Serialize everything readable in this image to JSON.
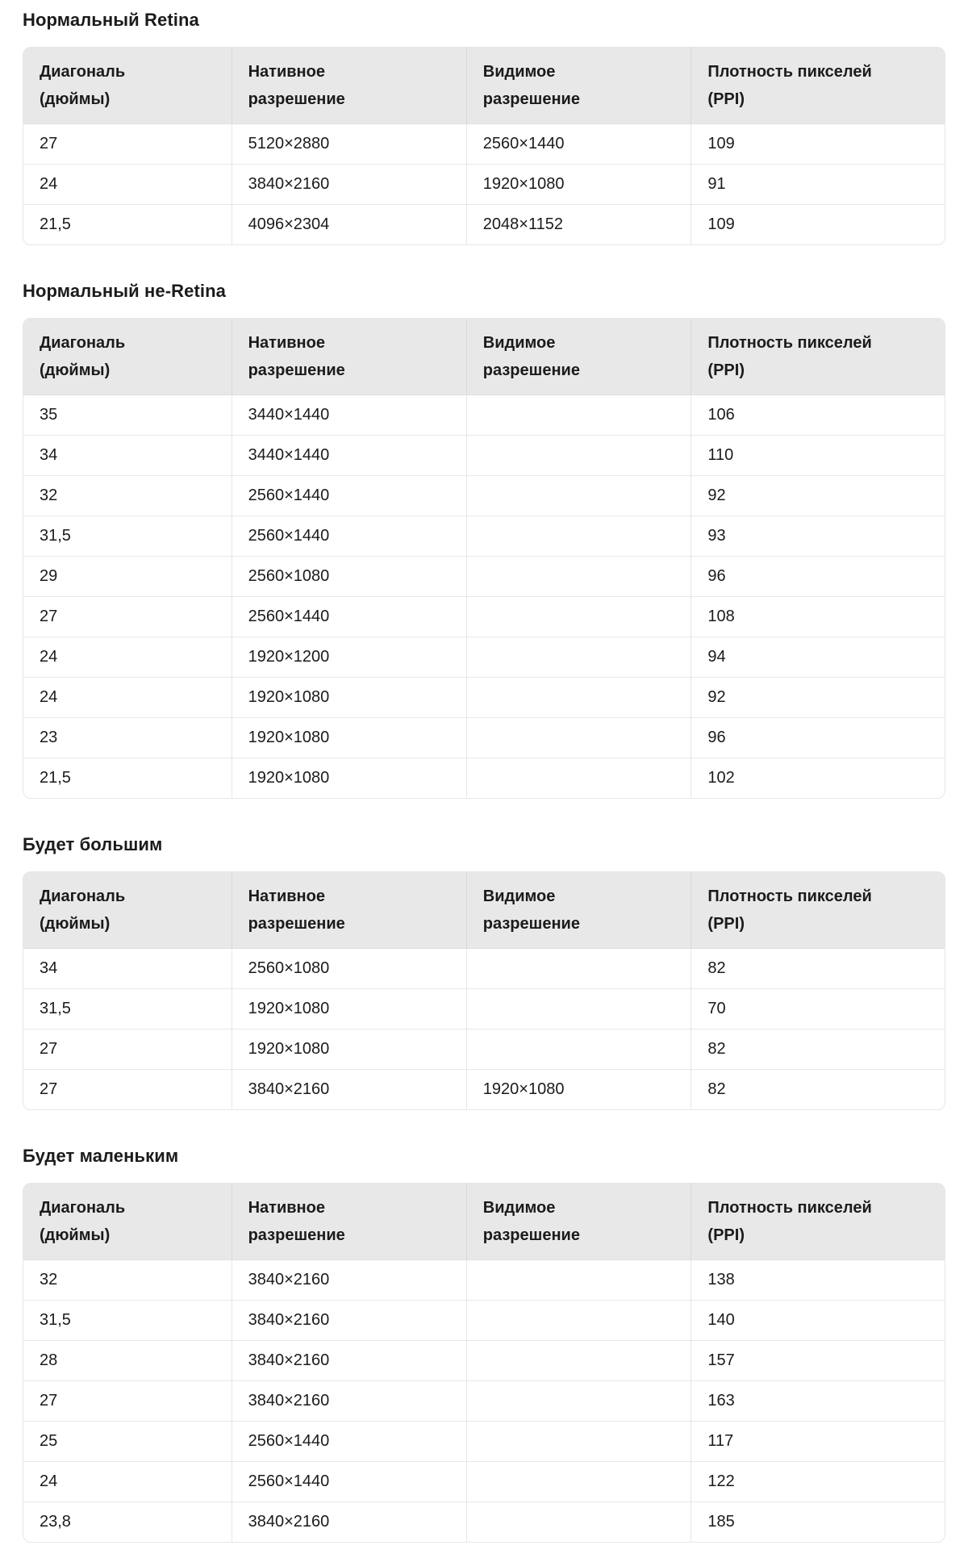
{
  "colors": {
    "header_background": "#e8e8e8",
    "text": "#1b1b1b",
    "border": "#e6e6e6",
    "page_background": "#ffffff"
  },
  "sections": [
    {
      "title": "Нормальный Retina",
      "table": {
        "headers": [
          [
            "Диагональ",
            "(дюймы)"
          ],
          [
            "Нативное",
            "разрешение"
          ],
          [
            "Видимое",
            "разрешение"
          ],
          [
            "Плотность пикселей",
            "(PPI)"
          ]
        ],
        "rows": [
          [
            "27",
            "5120×2880",
            "2560×1440",
            "109"
          ],
          [
            "24",
            "3840×2160",
            "1920×1080",
            "91"
          ],
          [
            "21,5",
            "4096×2304",
            "2048×1152",
            "109"
          ]
        ]
      }
    },
    {
      "title": "Нормальный не-Retina",
      "table": {
        "headers": [
          [
            "Диагональ",
            "(дюймы)"
          ],
          [
            "Нативное",
            "разрешение"
          ],
          [
            "Видимое",
            "разрешение"
          ],
          [
            "Плотность пикселей",
            "(PPI)"
          ]
        ],
        "rows": [
          [
            "35",
            "3440×1440",
            "",
            "106"
          ],
          [
            "34",
            "3440×1440",
            "",
            "110"
          ],
          [
            "32",
            "2560×1440",
            "",
            "92"
          ],
          [
            "31,5",
            "2560×1440",
            "",
            "93"
          ],
          [
            "29",
            "2560×1080",
            "",
            "96"
          ],
          [
            "27",
            "2560×1440",
            "",
            "108"
          ],
          [
            "24",
            "1920×1200",
            "",
            "94"
          ],
          [
            "24",
            "1920×1080",
            "",
            "92"
          ],
          [
            "23",
            "1920×1080",
            "",
            "96"
          ],
          [
            "21,5",
            "1920×1080",
            "",
            "102"
          ]
        ]
      }
    },
    {
      "title": "Будет большим",
      "table": {
        "headers": [
          [
            "Диагональ",
            "(дюймы)"
          ],
          [
            "Нативное",
            "разрешение"
          ],
          [
            "Видимое",
            "разрешение"
          ],
          [
            "Плотность пикселей",
            "(PPI)"
          ]
        ],
        "rows": [
          [
            "34",
            "2560×1080",
            "",
            "82"
          ],
          [
            "31,5",
            "1920×1080",
            "",
            "70"
          ],
          [
            "27",
            "1920×1080",
            "",
            "82"
          ],
          [
            "27",
            "3840×2160",
            "1920×1080",
            "82"
          ]
        ]
      }
    },
    {
      "title": "Будет маленьким",
      "table": {
        "headers": [
          [
            "Диагональ",
            "(дюймы)"
          ],
          [
            "Нативное",
            "разрешение"
          ],
          [
            "Видимое",
            "разрешение"
          ],
          [
            "Плотность пикселей",
            "(PPI)"
          ]
        ],
        "rows": [
          [
            "32",
            "3840×2160",
            "",
            "138"
          ],
          [
            "31,5",
            "3840×2160",
            "",
            "140"
          ],
          [
            "28",
            "3840×2160",
            "",
            "157"
          ],
          [
            "27",
            "3840×2160",
            "",
            "163"
          ],
          [
            "25",
            "2560×1440",
            "",
            "117"
          ],
          [
            "24",
            "2560×1440",
            "",
            "122"
          ],
          [
            "23,8",
            "3840×2160",
            "",
            "185"
          ]
        ]
      }
    }
  ]
}
